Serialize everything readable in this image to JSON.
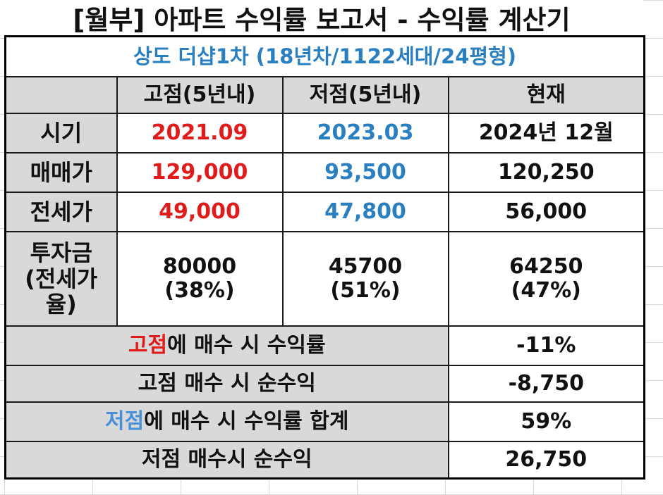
{
  "title": "[월부] 아파트 수익률 보고서 - 수익률 계산기",
  "subtitle": "상도 더샵1차 (18년차/1122세대/24평형)",
  "headers": [
    "고점(5년내)",
    "저점(5년내)",
    "현재"
  ],
  "rows": [
    {
      "label": "시기",
      "high": "2021.09",
      "low": "2023.03",
      "now": "2024년 12월"
    },
    {
      "label": "매매가",
      "high": "129,000",
      "low": "93,500",
      "now": "120,250"
    },
    {
      "label": "전세가",
      "high": "49,000",
      "low": "47,800",
      "now": "56,000"
    }
  ],
  "investment": {
    "label_line1": "투자금",
    "label_line2": "(전세가",
    "label_line3": "율)",
    "high_amount": "80000",
    "high_pct": "(38%)",
    "low_amount": "45700",
    "low_pct": "(51%)",
    "now_amount": "64250",
    "now_pct": "(47%)"
  },
  "summary": {
    "high_rate": {
      "highlight": "고점",
      "rest": "에 매수 시 수익률",
      "value": "-11%"
    },
    "high_profit": {
      "label": "고점 매수 시 순수익",
      "value": "-8,750"
    },
    "low_rate": {
      "highlight": "저점",
      "rest": "에 매수 시 수익률 합계",
      "value": "59%"
    },
    "low_profit": {
      "label": "저점 매수시 순수익",
      "value": "26,750"
    }
  },
  "colors": {
    "high": "#e01b1b",
    "low": "#2a7fc1",
    "header_bg": "#d9d9d9"
  }
}
